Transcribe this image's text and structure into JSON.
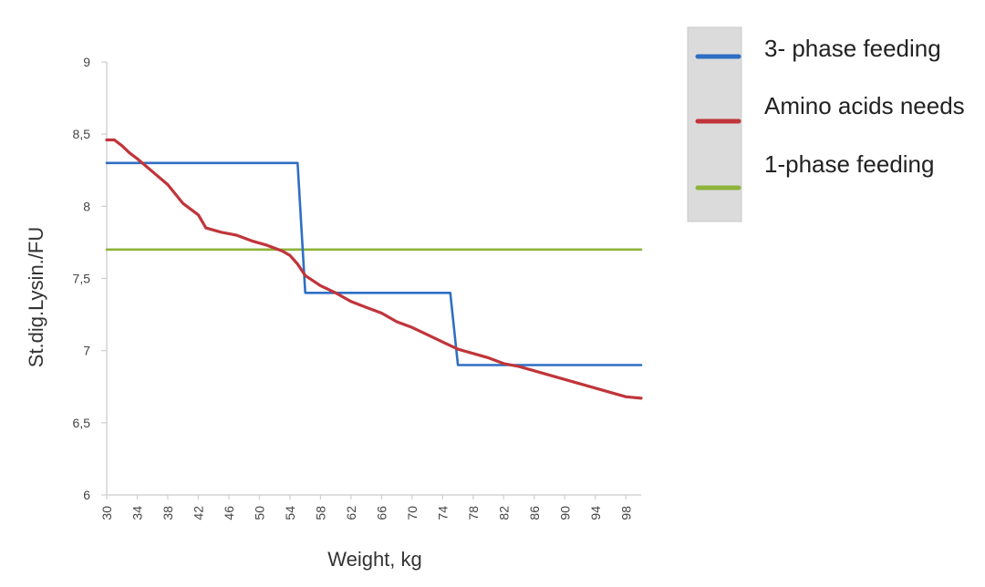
{
  "chart_data": {
    "type": "line",
    "xlabel": "Weight, kg",
    "ylabel": "St.dig.Lysin./FU",
    "xlim": [
      30,
      100
    ],
    "ylim": [
      6,
      9
    ],
    "x_ticks": [
      30,
      34,
      38,
      42,
      46,
      50,
      54,
      58,
      62,
      66,
      70,
      74,
      78,
      82,
      86,
      90,
      94,
      98
    ],
    "y_ticks": [
      {
        "value": 6,
        "label": "6"
      },
      {
        "value": 6.5,
        "label": "6,5"
      },
      {
        "value": 7,
        "label": "7"
      },
      {
        "value": 7.5,
        "label": "7,5"
      },
      {
        "value": 8,
        "label": "8"
      },
      {
        "value": 8.5,
        "label": "8,5"
      },
      {
        "value": 9,
        "label": "9"
      }
    ],
    "legend_position": "top-right",
    "series": [
      {
        "name": "3- phase feeding",
        "color": "#2f6fc3",
        "points": [
          [
            30,
            8.3
          ],
          [
            55,
            8.3
          ],
          [
            56,
            7.4
          ],
          [
            75,
            7.4
          ],
          [
            76,
            6.9
          ],
          [
            100,
            6.9
          ]
        ]
      },
      {
        "name": "Amino acids needs",
        "color": "#c0353a",
        "points": [
          [
            30,
            8.46
          ],
          [
            31,
            8.46
          ],
          [
            32,
            8.42
          ],
          [
            33,
            8.37
          ],
          [
            34,
            8.33
          ],
          [
            36,
            8.24
          ],
          [
            38,
            8.15
          ],
          [
            40,
            8.02
          ],
          [
            42,
            7.94
          ],
          [
            43,
            7.85
          ],
          [
            45,
            7.82
          ],
          [
            47,
            7.8
          ],
          [
            49,
            7.76
          ],
          [
            51,
            7.73
          ],
          [
            53,
            7.69
          ],
          [
            54,
            7.66
          ],
          [
            55,
            7.6
          ],
          [
            56,
            7.52
          ],
          [
            58,
            7.45
          ],
          [
            60,
            7.4
          ],
          [
            62,
            7.34
          ],
          [
            64,
            7.3
          ],
          [
            66,
            7.26
          ],
          [
            68,
            7.2
          ],
          [
            70,
            7.16
          ],
          [
            72,
            7.11
          ],
          [
            74,
            7.06
          ],
          [
            76,
            7.01
          ],
          [
            78,
            6.98
          ],
          [
            80,
            6.95
          ],
          [
            82,
            6.91
          ],
          [
            84,
            6.89
          ],
          [
            86,
            6.86
          ],
          [
            88,
            6.83
          ],
          [
            90,
            6.8
          ],
          [
            92,
            6.77
          ],
          [
            94,
            6.74
          ],
          [
            96,
            6.71
          ],
          [
            98,
            6.68
          ],
          [
            100,
            6.67
          ]
        ]
      },
      {
        "name": "1-phase feeding",
        "color": "#8db33a",
        "points": [
          [
            30,
            7.7
          ],
          [
            100,
            7.7
          ]
        ]
      }
    ]
  }
}
